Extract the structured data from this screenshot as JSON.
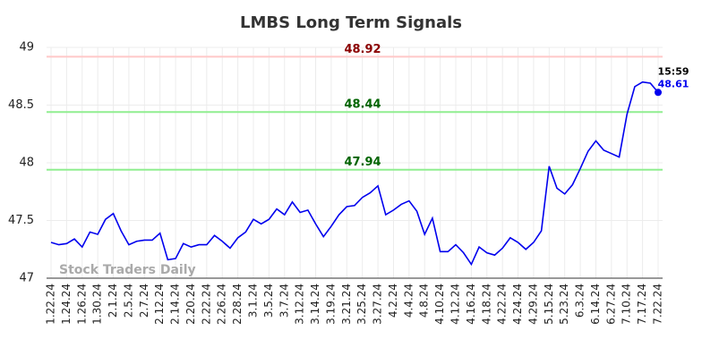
{
  "chart_data": {
    "type": "line",
    "title": "LMBS Long Term Signals",
    "x": [
      "1.22.24",
      null,
      "1.24.24",
      null,
      "1.26.24",
      null,
      "1.30.24",
      null,
      "2.1.24",
      null,
      "2.5.24",
      null,
      "2.7.24",
      null,
      "2.12.24",
      null,
      "2.14.24",
      null,
      "2.20.24",
      null,
      "2.22.24",
      null,
      "2.26.24",
      null,
      "2.28.24",
      null,
      "3.1.24",
      null,
      "3.5.24",
      null,
      "3.7.24",
      null,
      "3.12.24",
      null,
      "3.14.24",
      null,
      "3.19.24",
      null,
      "3.21.24",
      null,
      "3.25.24",
      null,
      "3.27.24",
      null,
      "4.2.24",
      null,
      "4.4.24",
      null,
      "4.8.24",
      null,
      "4.10.24",
      null,
      "4.12.24",
      null,
      "4.16.24",
      null,
      "4.18.24",
      null,
      "4.22.24",
      null,
      "4.24.24",
      null,
      "4.29.24",
      null,
      "5.15.24",
      null,
      "5.23.24",
      null,
      "6.3.24",
      null,
      "6.14.24",
      null,
      "6.27.24",
      null,
      "7.10.24",
      null,
      "7.17.24",
      null,
      "7.22.24"
    ],
    "series": [
      {
        "color": "#0000ee",
        "values": [
          47.31,
          47.29,
          47.3,
          47.34,
          47.27,
          47.4,
          47.38,
          47.51,
          47.56,
          47.41,
          47.29,
          47.32,
          47.33,
          47.33,
          47.39,
          47.16,
          47.17,
          47.3,
          47.27,
          47.29,
          47.29,
          47.37,
          47.32,
          47.26,
          47.35,
          47.4,
          47.51,
          47.47,
          47.51,
          47.6,
          47.55,
          47.66,
          47.57,
          47.59,
          47.47,
          47.36,
          47.45,
          47.55,
          47.62,
          47.63,
          47.7,
          47.74,
          47.8,
          47.55,
          47.59,
          47.64,
          47.67,
          47.58,
          47.38,
          47.52,
          47.23,
          47.23,
          47.29,
          47.22,
          47.12,
          47.27,
          47.22,
          47.2,
          47.26,
          47.35,
          47.31,
          47.25,
          47.31,
          47.41,
          47.97,
          47.78,
          47.73,
          47.81,
          47.95,
          48.1,
          48.19,
          48.11,
          48.08,
          48.05,
          48.42,
          48.66,
          48.7,
          48.69,
          48.61
        ]
      }
    ],
    "hlines": [
      {
        "value": 48.92,
        "line_color": "#ffc8c8",
        "label_color": "#8b0000"
      },
      {
        "value": 48.44,
        "line_color": "#90ee90",
        "label_color": "#006400"
      },
      {
        "value": 47.94,
        "line_color": "#90ee90",
        "label_color": "#006400"
      }
    ],
    "last_time": "15:59",
    "watermark": "Stock Traders Daily",
    "ylim": [
      47,
      49
    ],
    "yticks": [
      47,
      47.5,
      48,
      48.5,
      49
    ],
    "grid": true
  }
}
